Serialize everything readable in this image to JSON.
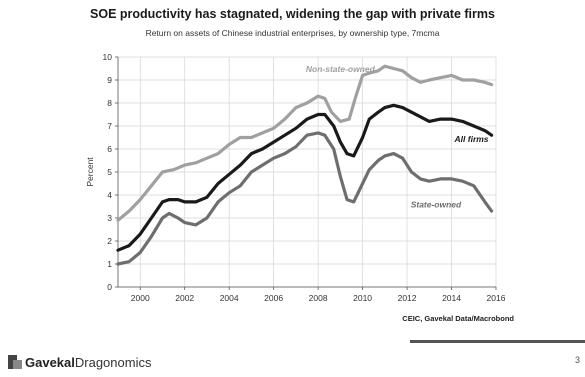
{
  "chart_data": {
    "type": "line",
    "title": "SOE productivity has stagnated, widening the gap with private firms",
    "subtitle": "Return on assets of Chinese industrial enterprises, by ownership type, 7mcma",
    "ylabel": "Percent",
    "xlabel": "",
    "xlim": [
      1999,
      2016
    ],
    "ylim": [
      0,
      10
    ],
    "xticks": [
      2000,
      2002,
      2004,
      2006,
      2008,
      2010,
      2012,
      2014,
      2016
    ],
    "yticks": [
      0,
      1,
      2,
      3,
      4,
      5,
      6,
      7,
      8,
      9,
      10
    ],
    "grid": true,
    "series": [
      {
        "name": "Non-state-owned",
        "color": "#a0a0a0",
        "x": [
          1999.0,
          1999.5,
          2000.0,
          2000.5,
          2001.0,
          2001.5,
          2002.0,
          2002.5,
          2003.0,
          2003.5,
          2004.0,
          2004.5,
          2005.0,
          2005.5,
          2006.0,
          2006.5,
          2007.0,
          2007.5,
          2008.0,
          2008.3,
          2008.6,
          2009.0,
          2009.4,
          2009.7,
          2010.0,
          2010.3,
          2010.7,
          2011.0,
          2011.4,
          2011.8,
          2012.2,
          2012.6,
          2013.0,
          2013.5,
          2014.0,
          2014.5,
          2015.0,
          2015.5,
          2015.8
        ],
        "y": [
          2.9,
          3.3,
          3.8,
          4.4,
          5.0,
          5.1,
          5.3,
          5.4,
          5.6,
          5.8,
          6.2,
          6.5,
          6.5,
          6.7,
          6.9,
          7.3,
          7.8,
          8.0,
          8.3,
          8.2,
          7.6,
          7.2,
          7.3,
          8.3,
          9.2,
          9.3,
          9.4,
          9.6,
          9.5,
          9.4,
          9.1,
          8.9,
          9.0,
          9.1,
          9.2,
          9.0,
          9.0,
          8.9,
          8.8
        ]
      },
      {
        "name": "All firms",
        "color": "#1a1a1a",
        "x": [
          1999.0,
          1999.5,
          2000.0,
          2000.5,
          2001.0,
          2001.3,
          2001.7,
          2002.0,
          2002.5,
          2003.0,
          2003.5,
          2004.0,
          2004.5,
          2005.0,
          2005.5,
          2006.0,
          2006.5,
          2007.0,
          2007.5,
          2008.0,
          2008.3,
          2008.7,
          2009.0,
          2009.3,
          2009.6,
          2010.0,
          2010.3,
          2010.7,
          2011.0,
          2011.4,
          2011.8,
          2012.2,
          2012.6,
          2013.0,
          2013.5,
          2014.0,
          2014.5,
          2015.0,
          2015.5,
          2015.8
        ],
        "y": [
          1.6,
          1.8,
          2.3,
          3.0,
          3.7,
          3.8,
          3.8,
          3.7,
          3.7,
          3.9,
          4.5,
          4.9,
          5.3,
          5.8,
          6.0,
          6.3,
          6.6,
          6.9,
          7.3,
          7.5,
          7.5,
          7.0,
          6.3,
          5.8,
          5.7,
          6.5,
          7.3,
          7.6,
          7.8,
          7.9,
          7.8,
          7.6,
          7.4,
          7.2,
          7.3,
          7.3,
          7.2,
          7.0,
          6.8,
          6.6
        ]
      },
      {
        "name": "State-owned",
        "color": "#6e6e6e",
        "x": [
          1999.0,
          1999.5,
          2000.0,
          2000.5,
          2001.0,
          2001.3,
          2001.7,
          2002.0,
          2002.5,
          2003.0,
          2003.5,
          2004.0,
          2004.5,
          2005.0,
          2005.5,
          2006.0,
          2006.5,
          2007.0,
          2007.5,
          2008.0,
          2008.3,
          2008.7,
          2009.0,
          2009.3,
          2009.6,
          2010.0,
          2010.3,
          2010.7,
          2011.0,
          2011.4,
          2011.8,
          2012.2,
          2012.6,
          2013.0,
          2013.5,
          2014.0,
          2014.5,
          2015.0,
          2015.5,
          2015.8
        ],
        "y": [
          1.0,
          1.1,
          1.5,
          2.2,
          3.0,
          3.2,
          3.0,
          2.8,
          2.7,
          3.0,
          3.7,
          4.1,
          4.4,
          5.0,
          5.3,
          5.6,
          5.8,
          6.1,
          6.6,
          6.7,
          6.6,
          6.0,
          4.8,
          3.8,
          3.7,
          4.5,
          5.1,
          5.5,
          5.7,
          5.8,
          5.6,
          5.0,
          4.7,
          4.6,
          4.7,
          4.7,
          4.6,
          4.4,
          3.7,
          3.3
        ]
      }
    ],
    "annotations": [
      {
        "text": "Non-state-owned",
        "series": "Non-state-owned",
        "x": 2009.0,
        "y": 9.35
      },
      {
        "text": "All firms",
        "series": "All firms",
        "x": 2014.9,
        "y": 6.3
      },
      {
        "text": "State-owned",
        "series": "State-owned",
        "x": 2013.3,
        "y": 3.45
      }
    ],
    "source": "CEIC, Gavekal Data/Macrobond"
  },
  "footer": {
    "logo_bold": "Gavekal",
    "logo_light": "Dragonomics",
    "page_number": "3"
  }
}
